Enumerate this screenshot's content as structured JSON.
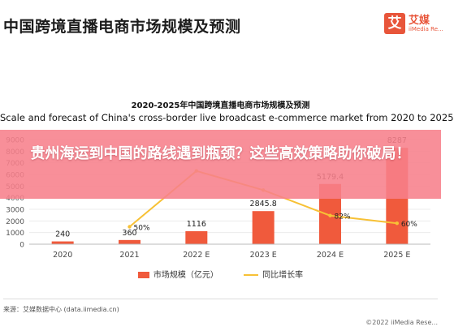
{
  "header": {
    "title": "中国跨境直播电商市场规模及预测",
    "logo_mark": "艾",
    "logo_name": "艾媒",
    "logo_en": "iiMedia Re..."
  },
  "banner": {
    "headline": "贵州海运到中国的路线遇到瓶颈？这些高效策略助你破局！"
  },
  "chart_data": {
    "type": "bar",
    "title": "2020-2025年中国跨境直播电商市场规模及预测",
    "subtitle": "Scale and forecast of China's cross-border live broadcast e-commerce market from 2020 to 2025",
    "categories": [
      "2020",
      "2021",
      "2022 E",
      "2023 E",
      "2024 E",
      "2025 E"
    ],
    "series": [
      {
        "name": "市场规模（亿元）",
        "type": "bar",
        "color": "#f05a3c",
        "values": [
          240,
          360,
          1116,
          2845.8,
          5179.4,
          8287
        ],
        "labels": [
          "240",
          "360",
          "1116",
          "2845.8",
          "5179.4",
          "8287"
        ]
      },
      {
        "name": "同比增长率",
        "type": "line",
        "color": "#f7c136",
        "values": [
          null,
          50,
          210,
          155,
          82,
          60
        ],
        "labels": [
          "",
          "50%",
          "",
          "",
          "82%",
          "60%"
        ]
      }
    ],
    "y_ticks": [
      0,
      1000,
      2000,
      3000,
      4000,
      5000,
      6000,
      7000,
      8000,
      9000
    ],
    "ylim": [
      0,
      9000
    ],
    "y2lim": [
      0,
      300
    ],
    "legend_position": "bottom",
    "grid": true
  },
  "footer": {
    "source": "来源：艾媒数据中心 (data.iimedia.cn)",
    "copyright": "©2022 iiMedia Rese..."
  }
}
